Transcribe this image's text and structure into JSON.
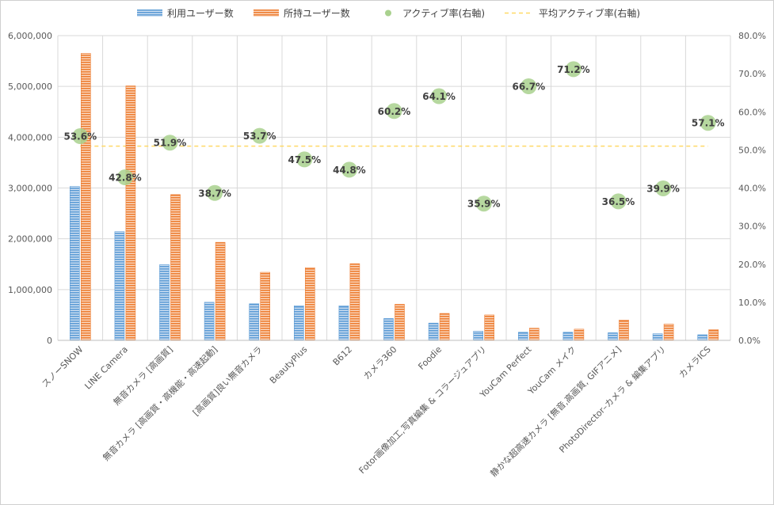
{
  "chart_data": {
    "type": "bar",
    "categories": [
      "スノーSNOW",
      "LINE Camera",
      "無音カメラ [高画質]",
      "無音カメラ [高画質・高機能・高速起動]",
      "[高画質]良い無音カメラ",
      "BeautyPlus",
      "B612",
      "カメラ360",
      "Foodie",
      "Fotor画像加工,写真編集 & コラージュアプリ",
      "YouCam Perfect",
      "YouCam メイク",
      "静かな超高速カメラ [無音,高画質, GIFアニメ]",
      "PhotoDirector–カメラ & 編集アプリ",
      "カメラICS"
    ],
    "series": [
      {
        "name": "利用ユーザー数",
        "axis": "left",
        "color": "#5b9bd5",
        "values": [
          3030000,
          2140000,
          1490000,
          750000,
          720000,
          680000,
          680000,
          430000,
          340000,
          180000,
          160000,
          160000,
          150000,
          130000,
          110000
        ]
      },
      {
        "name": "所持ユーザー数",
        "axis": "left",
        "color": "#ed7d31",
        "values": [
          5650000,
          5010000,
          2870000,
          1930000,
          1340000,
          1430000,
          1510000,
          710000,
          530000,
          500000,
          240000,
          220000,
          400000,
          320000,
          210000
        ]
      },
      {
        "name": "アクティブ率(右軸)",
        "axis": "right",
        "type": "scatter",
        "color": "#a9d18e",
        "values": [
          53.6,
          42.8,
          51.9,
          38.7,
          53.7,
          47.5,
          44.8,
          60.2,
          64.1,
          35.9,
          66.7,
          71.2,
          36.5,
          39.9,
          57.1
        ],
        "labels": [
          "53.6%",
          "42.8%",
          "51.9%",
          "38.7%",
          "53.7%",
          "47.5%",
          "44.8%",
          "60.2%",
          "64.1%",
          "35.9%",
          "66.7%",
          "71.2%",
          "36.5%",
          "39.9%",
          "57.1%"
        ]
      },
      {
        "name": "平均アクティブ率(右軸)",
        "axis": "right",
        "type": "line",
        "style": "dashed",
        "color": "#ffd966",
        "value": 51.0
      }
    ],
    "y_left": {
      "ylim": [
        0,
        6000000
      ],
      "ticks": [
        0,
        1000000,
        2000000,
        3000000,
        4000000,
        5000000,
        6000000
      ],
      "tick_labels": [
        "0",
        "1,000,000",
        "2,000,000",
        "3,000,000",
        "4,000,000",
        "5,000,000",
        "6,000,000"
      ]
    },
    "y_right": {
      "ylim": [
        0,
        80
      ],
      "ticks": [
        0,
        10,
        20,
        30,
        40,
        50,
        60,
        70,
        80
      ],
      "tick_labels": [
        "0.0%",
        "10.0%",
        "20.0%",
        "30.0%",
        "40.0%",
        "50.0%",
        "60.0%",
        "70.0%",
        "80.0%"
      ]
    },
    "legend_position": "top",
    "grid": true
  }
}
